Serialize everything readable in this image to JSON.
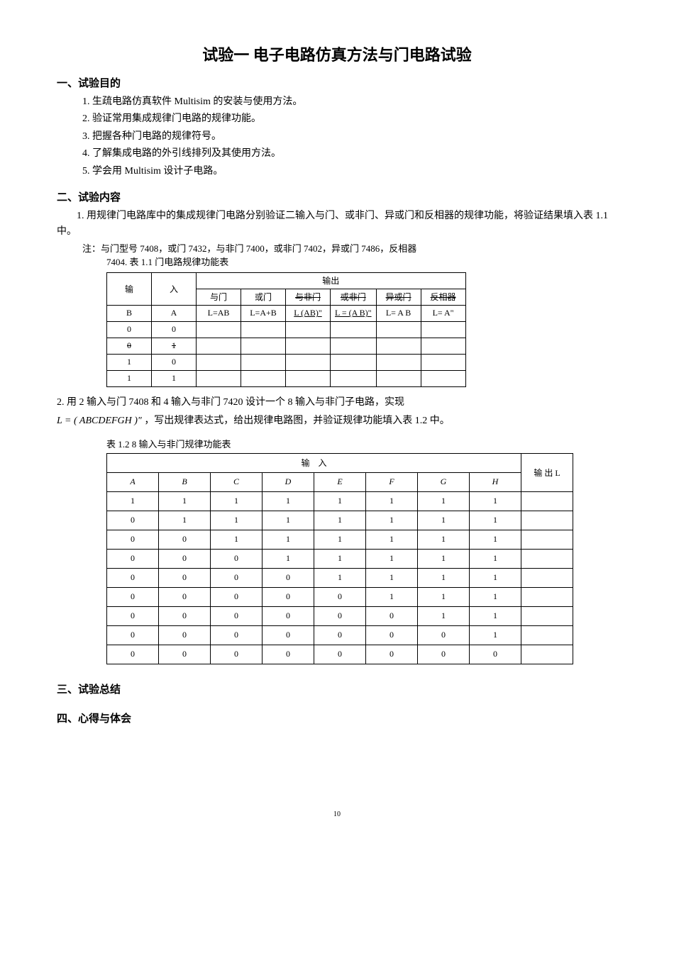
{
  "title": "试验一  电子电路仿真方法与门电路试验",
  "sec1": {
    "heading": "一、试验目的",
    "items": [
      "1.  生疏电路仿真软件 Multisim  的安装与使用方法。",
      "2.  验证常用集成规律门电路的规律功能。",
      "3.  把握各种门电路的规律符号。",
      "4.  了解集成电路的外引线排列及其使用方法。",
      "5.   学会用 Multisim 设计子电路。"
    ]
  },
  "sec2": {
    "heading": "二、试验内容",
    "p1": "1.  用规律门电路库中的集成规律门电路分别验证二输入与门、或非门、异或门和反相器的规律功能，将验证结果填入表 1.1 中。",
    "note1": "注：与门型号 7408，或门 7432，与非门 7400，或非门 7402，异或门 7486，反相器",
    "note2": "7404.  表 1.1 门电路规律功能表",
    "table11": {
      "head_input": "输",
      "head_input2": "入",
      "head_output": "输出",
      "head_and": "与门",
      "head_or": "或门",
      "head_nand": "与非门",
      "head_nor": "或非门",
      "head_xor": "异或门",
      "head_not": "反相器",
      "col_b": "B",
      "col_a": "A",
      "f_and": "L=AB",
      "f_or": "L=A+B",
      "f_nand": "L  (AB)\"",
      "f_nor": "L = (A  B)\"",
      "f_xor": "L=  A  B",
      "f_not": "L= A\"",
      "rows": [
        [
          "0",
          "0"
        ],
        [
          "0",
          "1"
        ],
        [
          "1",
          "0"
        ],
        [
          "1",
          "1"
        ]
      ]
    },
    "p2_prefix": "2.  用",
    "p2_text": "2 输入与门 7408 和 4 输入与非门 7420 设计一个 8 输入与非门子电路，实现",
    "formula": "L = ( ABCDEFGH )\"",
    "p2_suffix": "，写出规律表达式，给出规律电路图，并验证规律功能填入表 1.2 中。",
    "table12_caption": "表 1.2   8 输入与非门规律功能表",
    "table12": {
      "head_input": "输",
      "head_input2": "入",
      "head_output": "输 出 L",
      "cols": [
        "A",
        "B",
        "C",
        "D",
        "E",
        "F",
        "G",
        "H"
      ],
      "rows": [
        [
          1,
          1,
          1,
          1,
          1,
          1,
          1,
          1
        ],
        [
          0,
          1,
          1,
          1,
          1,
          1,
          1,
          1
        ],
        [
          0,
          0,
          1,
          1,
          1,
          1,
          1,
          1
        ],
        [
          0,
          0,
          0,
          1,
          1,
          1,
          1,
          1
        ],
        [
          0,
          0,
          0,
          0,
          1,
          1,
          1,
          1
        ],
        [
          0,
          0,
          0,
          0,
          0,
          1,
          1,
          1
        ],
        [
          0,
          0,
          0,
          0,
          0,
          0,
          1,
          1
        ],
        [
          0,
          0,
          0,
          0,
          0,
          0,
          0,
          1
        ],
        [
          0,
          0,
          0,
          0,
          0,
          0,
          0,
          0
        ]
      ]
    }
  },
  "sec3": {
    "heading": "三、试验总结"
  },
  "sec4": {
    "heading": "四、心得与体会"
  },
  "page_num": "10"
}
